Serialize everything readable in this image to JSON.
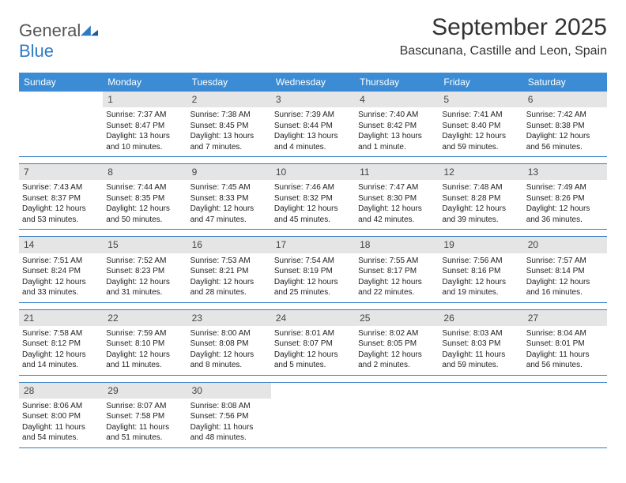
{
  "logo": {
    "word1": "General",
    "word2": "Blue"
  },
  "title": "September 2025",
  "location": "Bascunana, Castille and Leon, Spain",
  "colors": {
    "header_bg": "#3b8cd4",
    "daynum_bg": "#e5e5e5",
    "rule": "#2f7bc4",
    "logo_blue": "#2f7bc4"
  },
  "daysOfWeek": [
    "Sunday",
    "Monday",
    "Tuesday",
    "Wednesday",
    "Thursday",
    "Friday",
    "Saturday"
  ],
  "weeks": [
    [
      {
        "n": "",
        "sr": "",
        "ss": "",
        "dl": ""
      },
      {
        "n": "1",
        "sr": "7:37 AM",
        "ss": "8:47 PM",
        "dl": "13 hours and 10 minutes."
      },
      {
        "n": "2",
        "sr": "7:38 AM",
        "ss": "8:45 PM",
        "dl": "13 hours and 7 minutes."
      },
      {
        "n": "3",
        "sr": "7:39 AM",
        "ss": "8:44 PM",
        "dl": "13 hours and 4 minutes."
      },
      {
        "n": "4",
        "sr": "7:40 AM",
        "ss": "8:42 PM",
        "dl": "13 hours and 1 minute."
      },
      {
        "n": "5",
        "sr": "7:41 AM",
        "ss": "8:40 PM",
        "dl": "12 hours and 59 minutes."
      },
      {
        "n": "6",
        "sr": "7:42 AM",
        "ss": "8:38 PM",
        "dl": "12 hours and 56 minutes."
      }
    ],
    [
      {
        "n": "7",
        "sr": "7:43 AM",
        "ss": "8:37 PM",
        "dl": "12 hours and 53 minutes."
      },
      {
        "n": "8",
        "sr": "7:44 AM",
        "ss": "8:35 PM",
        "dl": "12 hours and 50 minutes."
      },
      {
        "n": "9",
        "sr": "7:45 AM",
        "ss": "8:33 PM",
        "dl": "12 hours and 47 minutes."
      },
      {
        "n": "10",
        "sr": "7:46 AM",
        "ss": "8:32 PM",
        "dl": "12 hours and 45 minutes."
      },
      {
        "n": "11",
        "sr": "7:47 AM",
        "ss": "8:30 PM",
        "dl": "12 hours and 42 minutes."
      },
      {
        "n": "12",
        "sr": "7:48 AM",
        "ss": "8:28 PM",
        "dl": "12 hours and 39 minutes."
      },
      {
        "n": "13",
        "sr": "7:49 AM",
        "ss": "8:26 PM",
        "dl": "12 hours and 36 minutes."
      }
    ],
    [
      {
        "n": "14",
        "sr": "7:51 AM",
        "ss": "8:24 PM",
        "dl": "12 hours and 33 minutes."
      },
      {
        "n": "15",
        "sr": "7:52 AM",
        "ss": "8:23 PM",
        "dl": "12 hours and 31 minutes."
      },
      {
        "n": "16",
        "sr": "7:53 AM",
        "ss": "8:21 PM",
        "dl": "12 hours and 28 minutes."
      },
      {
        "n": "17",
        "sr": "7:54 AM",
        "ss": "8:19 PM",
        "dl": "12 hours and 25 minutes."
      },
      {
        "n": "18",
        "sr": "7:55 AM",
        "ss": "8:17 PM",
        "dl": "12 hours and 22 minutes."
      },
      {
        "n": "19",
        "sr": "7:56 AM",
        "ss": "8:16 PM",
        "dl": "12 hours and 19 minutes."
      },
      {
        "n": "20",
        "sr": "7:57 AM",
        "ss": "8:14 PM",
        "dl": "12 hours and 16 minutes."
      }
    ],
    [
      {
        "n": "21",
        "sr": "7:58 AM",
        "ss": "8:12 PM",
        "dl": "12 hours and 14 minutes."
      },
      {
        "n": "22",
        "sr": "7:59 AM",
        "ss": "8:10 PM",
        "dl": "12 hours and 11 minutes."
      },
      {
        "n": "23",
        "sr": "8:00 AM",
        "ss": "8:08 PM",
        "dl": "12 hours and 8 minutes."
      },
      {
        "n": "24",
        "sr": "8:01 AM",
        "ss": "8:07 PM",
        "dl": "12 hours and 5 minutes."
      },
      {
        "n": "25",
        "sr": "8:02 AM",
        "ss": "8:05 PM",
        "dl": "12 hours and 2 minutes."
      },
      {
        "n": "26",
        "sr": "8:03 AM",
        "ss": "8:03 PM",
        "dl": "11 hours and 59 minutes."
      },
      {
        "n": "27",
        "sr": "8:04 AM",
        "ss": "8:01 PM",
        "dl": "11 hours and 56 minutes."
      }
    ],
    [
      {
        "n": "28",
        "sr": "8:06 AM",
        "ss": "8:00 PM",
        "dl": "11 hours and 54 minutes."
      },
      {
        "n": "29",
        "sr": "8:07 AM",
        "ss": "7:58 PM",
        "dl": "11 hours and 51 minutes."
      },
      {
        "n": "30",
        "sr": "8:08 AM",
        "ss": "7:56 PM",
        "dl": "11 hours and 48 minutes."
      },
      {
        "n": "",
        "sr": "",
        "ss": "",
        "dl": ""
      },
      {
        "n": "",
        "sr": "",
        "ss": "",
        "dl": ""
      },
      {
        "n": "",
        "sr": "",
        "ss": "",
        "dl": ""
      },
      {
        "n": "",
        "sr": "",
        "ss": "",
        "dl": ""
      }
    ]
  ],
  "labels": {
    "sunrise": "Sunrise:",
    "sunset": "Sunset:",
    "daylight": "Daylight:"
  }
}
